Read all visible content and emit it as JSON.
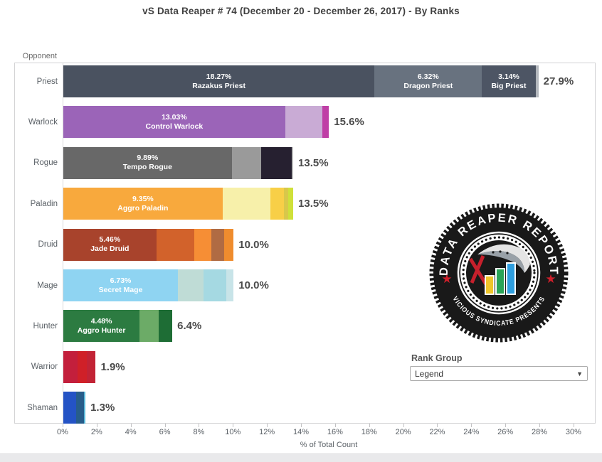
{
  "title": "vS Data Reaper #  74 (December 20 - December 26, 2017) - By Ranks",
  "axis": {
    "y_label": "Opponent",
    "x_label": "% of Total Count",
    "tick_step_pct": 2,
    "ticks": [
      "0%",
      "2%",
      "4%",
      "6%",
      "8%",
      "10%",
      "12%",
      "14%",
      "16%",
      "18%",
      "20%",
      "22%",
      "24%",
      "26%",
      "28%",
      "30%"
    ]
  },
  "controls": {
    "rank_group_label": "Rank Group",
    "rank_group_value": "Legend"
  },
  "stamp": {
    "top_text": "DATA REAPER REPORT",
    "bottom_text": "VICIOUS SYNDICATE PRESENTS"
  },
  "chart_data": {
    "type": "bar",
    "orientation": "horizontal",
    "title": "vS Data Reaper #  74 (December 20 - December 26, 2017) - By Ranks",
    "xlabel": "% of Total Count",
    "ylabel": "Opponent",
    "xlim_pct": [
      0,
      31
    ],
    "grid": false,
    "categories": [
      "Priest",
      "Warlock",
      "Rogue",
      "Paladin",
      "Druid",
      "Mage",
      "Hunter",
      "Warrior",
      "Shaman"
    ],
    "rows": [
      {
        "category": "Priest",
        "total": "27.9%",
        "segments": [
          {
            "pct": 18.27,
            "label": "18.27%",
            "name": "Razakus Priest",
            "color": "#4a5260"
          },
          {
            "pct": 6.32,
            "label": "6.32%",
            "name": "Dragon Priest",
            "color": "#68727f"
          },
          {
            "pct": 3.14,
            "label": "3.14%",
            "name": "Big Priest",
            "color": "#4d5564"
          },
          {
            "pct": 0.17,
            "color": "#b3b7bd"
          }
        ]
      },
      {
        "category": "Warlock",
        "total": "15.6%",
        "segments": [
          {
            "pct": 13.03,
            "label": "13.03%",
            "name": "Control Warlock",
            "color": "#9b64b8"
          },
          {
            "pct": 2.2,
            "color": "#c9abd5"
          },
          {
            "pct": 0.37,
            "color": "#bf3fa6"
          }
        ]
      },
      {
        "category": "Rogue",
        "total": "13.5%",
        "segments": [
          {
            "pct": 9.89,
            "label": "9.89%",
            "name": "Tempo Rogue",
            "color": "#686868"
          },
          {
            "pct": 1.71,
            "color": "#9a9a9a"
          },
          {
            "pct": 1.8,
            "color": "#262030"
          },
          {
            "pct": 0.1,
            "color": "#b9b9b9"
          }
        ]
      },
      {
        "category": "Paladin",
        "total": "13.5%",
        "segments": [
          {
            "pct": 9.35,
            "label": "9.35%",
            "name": "Aggro Paladin",
            "color": "#f8a93d"
          },
          {
            "pct": 2.81,
            "color": "#f7f0aa"
          },
          {
            "pct": 0.81,
            "color": "#f8cf47"
          },
          {
            "pct": 0.24,
            "color": "#d8c84a"
          },
          {
            "pct": 0.29,
            "color": "#cfe03a"
          }
        ]
      },
      {
        "category": "Druid",
        "total": "10.0%",
        "segments": [
          {
            "pct": 5.46,
            "label": "5.46%",
            "name": "Jade Druid",
            "color": "#a8432c"
          },
          {
            "pct": 2.23,
            "color": "#d2622b"
          },
          {
            "pct": 1.0,
            "color": "#f68e35"
          },
          {
            "pct": 0.76,
            "color": "#b06b43"
          },
          {
            "pct": 0.55,
            "color": "#ef8c2e"
          }
        ]
      },
      {
        "category": "Mage",
        "total": "10.0%",
        "segments": [
          {
            "pct": 6.73,
            "label": "6.73%",
            "name": "Secret Mage",
            "color": "#8fd4f2"
          },
          {
            "pct": 1.5,
            "color": "#bfdcd6"
          },
          {
            "pct": 1.35,
            "color": "#a5d9e2"
          },
          {
            "pct": 0.42,
            "color": "#c8e4e8"
          }
        ]
      },
      {
        "category": "Hunter",
        "total": "6.4%",
        "segments": [
          {
            "pct": 4.48,
            "label": "4.48%",
            "name": "Aggro Hunter",
            "color": "#2c7b41"
          },
          {
            "pct": 1.12,
            "color": "#6cab67"
          },
          {
            "pct": 0.8,
            "color": "#1e6d35"
          }
        ]
      },
      {
        "category": "Warrior",
        "total": "1.9%",
        "segments": [
          {
            "pct": 0.85,
            "color": "#c31f3c"
          },
          {
            "pct": 0.55,
            "color": "#d02028"
          },
          {
            "pct": 0.5,
            "color": "#c22335"
          }
        ]
      },
      {
        "category": "Shaman",
        "total": "1.3%",
        "segments": [
          {
            "pct": 0.75,
            "color": "#2453c5"
          },
          {
            "pct": 0.45,
            "color": "#275d8a"
          },
          {
            "pct": 0.1,
            "color": "#59b8d8"
          }
        ]
      }
    ]
  }
}
